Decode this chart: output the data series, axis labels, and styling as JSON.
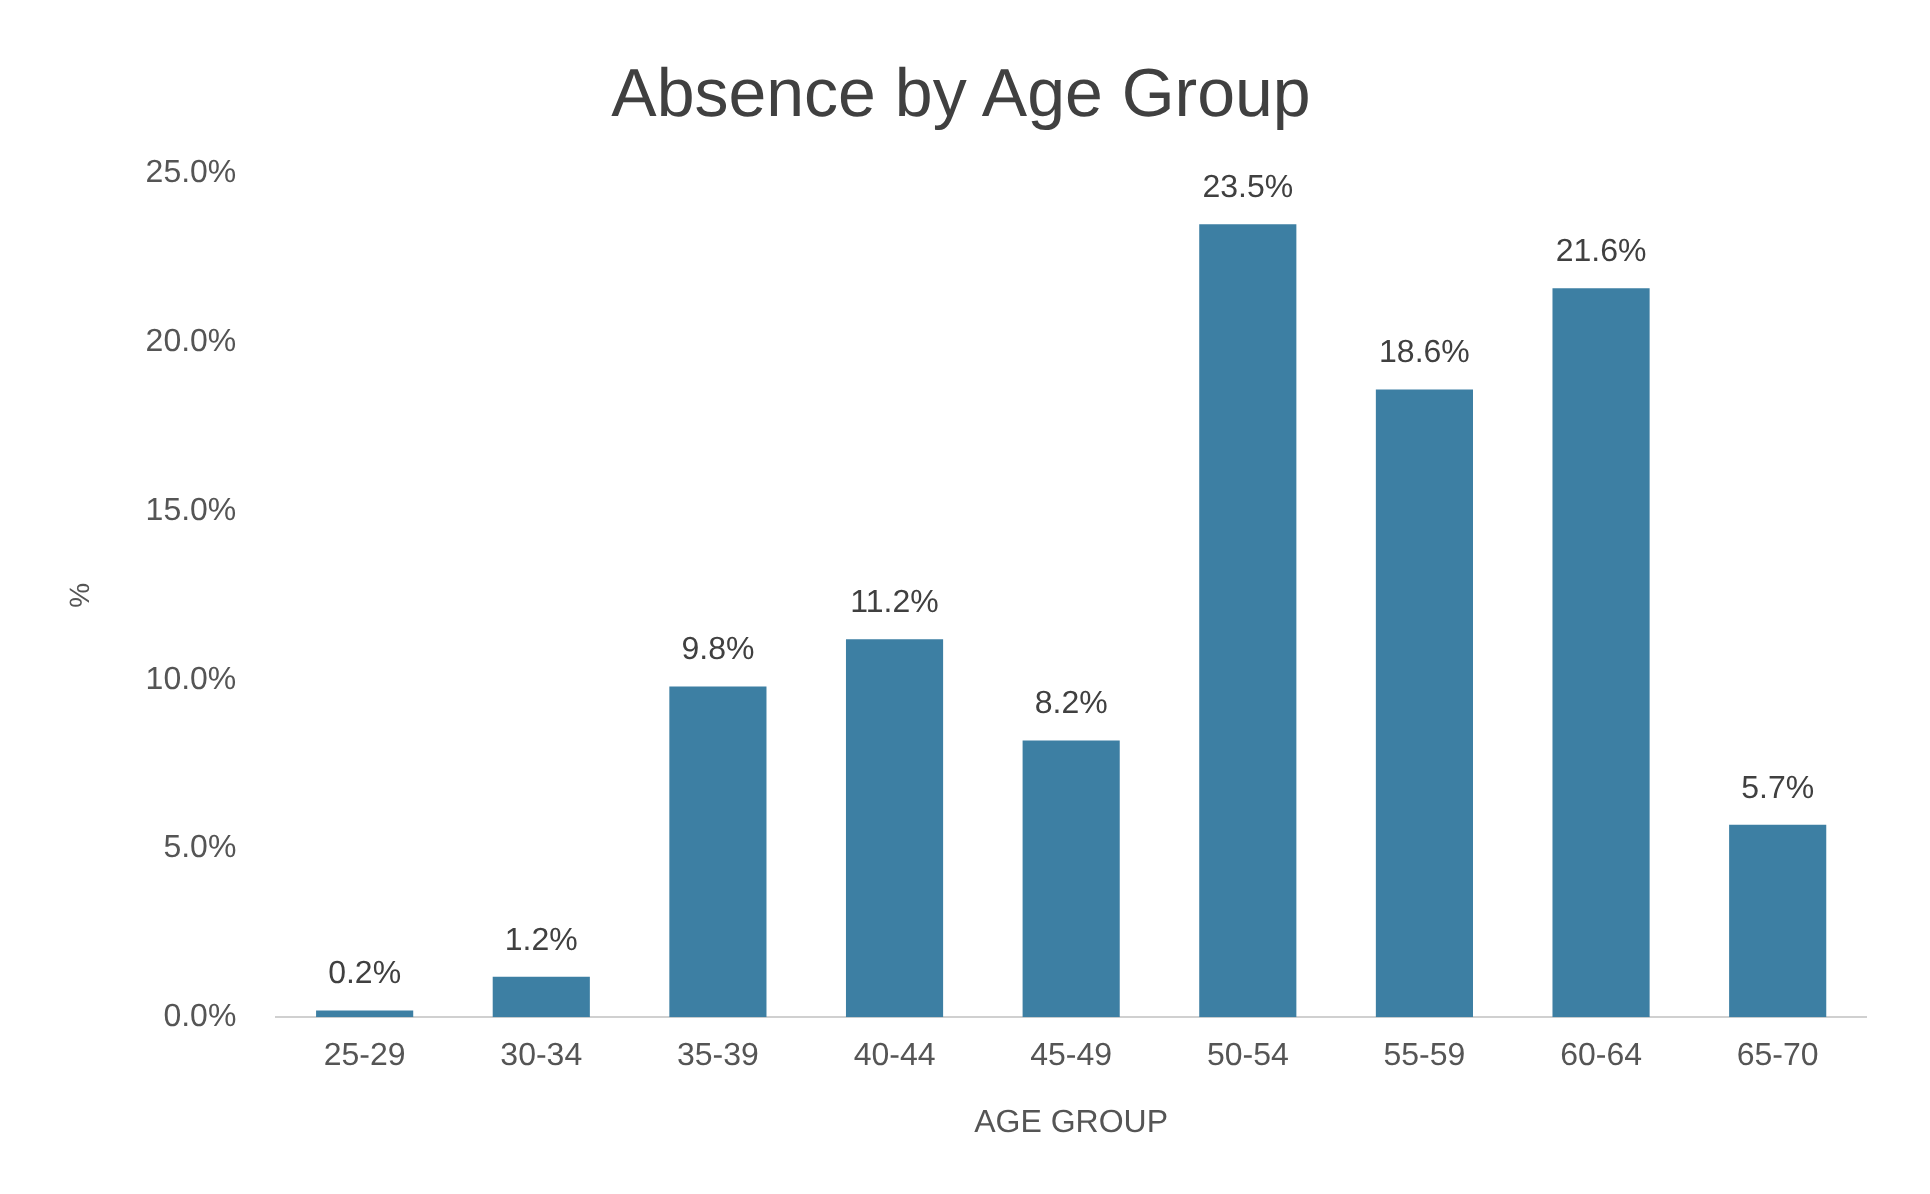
{
  "chart_data": {
    "type": "bar",
    "title": "Absence by Age Group",
    "xlabel": "AGE GROUP",
    "ylabel": "%",
    "categories": [
      "25-29",
      "30-34",
      "35-39",
      "40-44",
      "45-49",
      "50-54",
      "55-59",
      "60-64",
      "65-70"
    ],
    "values": [
      0.2,
      1.2,
      9.8,
      11.2,
      8.2,
      23.5,
      18.6,
      21.6,
      5.7
    ],
    "value_labels": [
      "0.2%",
      "1.2%",
      "9.8%",
      "11.2%",
      "8.2%",
      "23.5%",
      "18.6%",
      "21.6%",
      "5.7%"
    ],
    "color": "#3d7fa3",
    "ylim": [
      0,
      25
    ],
    "yticks": [
      {
        "value": 0,
        "label": "0.0%"
      },
      {
        "value": 5,
        "label": "5.0%"
      },
      {
        "value": 10,
        "label": "10.0%"
      },
      {
        "value": 15,
        "label": "15.0%"
      },
      {
        "value": 20,
        "label": "20.0%"
      },
      {
        "value": 25,
        "label": "25.0%"
      }
    ],
    "grid": false,
    "legend": false
  }
}
